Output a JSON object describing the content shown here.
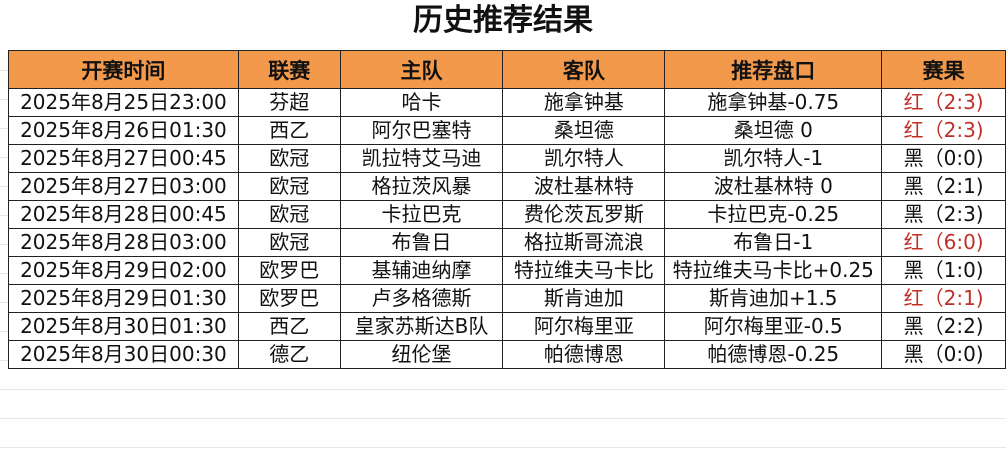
{
  "title": "历史推荐结果",
  "colors": {
    "header_bg": "#f3994b",
    "win_red": "#c0302a",
    "loss_black": "#111111"
  },
  "columns": [
    "开赛时间",
    "联赛",
    "主队",
    "客队",
    "推荐盘口",
    "赛果"
  ],
  "rows": [
    {
      "time": "2025年8月25日23:00",
      "league": "芬超",
      "home": "哈卡",
      "away": "施拿钟基",
      "pick": "施拿钟基-0.75",
      "result": "红（2:3)",
      "outcome": "red"
    },
    {
      "time": "2025年8月26日01:30",
      "league": "西乙",
      "home": "阿尔巴塞特",
      "away": "桑坦德",
      "pick": "桑坦德 0",
      "result": "红（2:3)",
      "outcome": "red"
    },
    {
      "time": "2025年8月27日00:45",
      "league": "欧冠",
      "home": "凯拉特艾马迪",
      "away": "凯尔特人",
      "pick": "凯尔特人-1",
      "result": "黑（0:0)",
      "outcome": "black"
    },
    {
      "time": "2025年8月27日03:00",
      "league": "欧冠",
      "home": "格拉茨风暴",
      "away": "波杜基林特",
      "pick": "波杜基林特 0",
      "result": "黑（2:1)",
      "outcome": "black"
    },
    {
      "time": "2025年8月28日00:45",
      "league": "欧冠",
      "home": "卡拉巴克",
      "away": "费伦茨瓦罗斯",
      "pick": "卡拉巴克-0.25",
      "result": "黑（2:3)",
      "outcome": "black"
    },
    {
      "time": "2025年8月28日03:00",
      "league": "欧冠",
      "home": "布鲁日",
      "away": "格拉斯哥流浪",
      "pick": "布鲁日-1",
      "result": "红（6:0)",
      "outcome": "red"
    },
    {
      "time": "2025年8月29日02:00",
      "league": "欧罗巴",
      "home": "基辅迪纳摩",
      "away": "特拉维夫马卡比",
      "pick": "特拉维夫马卡比+0.25",
      "result": "黑（1:0)",
      "outcome": "black"
    },
    {
      "time": "2025年8月29日01:30",
      "league": "欧罗巴",
      "home": "卢多格德斯",
      "away": "斯肯迪加",
      "pick": "斯肯迪加+1.5",
      "result": "红（2:1)",
      "outcome": "red"
    },
    {
      "time": "2025年8月30日01:30",
      "league": "西乙",
      "home": "皇家苏斯达B队",
      "away": "阿尔梅里亚",
      "pick": "阿尔梅里亚-0.5",
      "result": "黑（2:2)",
      "outcome": "black"
    },
    {
      "time": "2025年8月30日00:30",
      "league": "德乙",
      "home": "纽伦堡",
      "away": "帕德博恩",
      "pick": "帕德博恩-0.25",
      "result": "黑（0:0)",
      "outcome": "black"
    }
  ]
}
